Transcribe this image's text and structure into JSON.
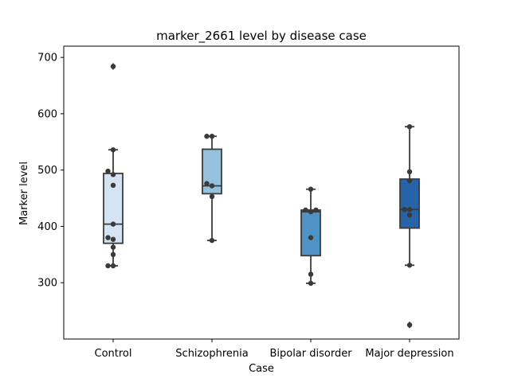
{
  "chart_data": {
    "type": "box",
    "title": "marker_2661 level by disease case",
    "xlabel": "Case",
    "ylabel": "Marker level",
    "ylim": [
      200,
      720
    ],
    "yticks": [
      300,
      400,
      500,
      600,
      700
    ],
    "grid": false,
    "categories": [
      "Control",
      "Schizophrenia",
      "Bipolar disorder",
      "Major depression"
    ],
    "colors": [
      "#d5e4f4",
      "#95c1dd",
      "#4f93c6",
      "#2764a7"
    ],
    "boxes": [
      {
        "category": "Control",
        "whisker_low": 330,
        "q1": 370,
        "median": 404,
        "q3": 494,
        "whisker_high": 536,
        "outliers": [
          684
        ]
      },
      {
        "category": "Schizophrenia",
        "whisker_low": 375,
        "q1": 458,
        "median": 472,
        "q3": 537,
        "whisker_high": 560,
        "outliers": []
      },
      {
        "category": "Bipolar disorder",
        "whisker_low": 299,
        "q1": 348,
        "median": 426,
        "q3": 429,
        "whisker_high": 466,
        "outliers": []
      },
      {
        "category": "Major depression",
        "whisker_low": 331,
        "q1": 397,
        "median": 430,
        "q3": 484,
        "whisker_high": 577,
        "outliers": [
          225
        ]
      }
    ],
    "points": [
      {
        "category": "Control",
        "values": [
          330,
          330,
          350,
          363,
          377,
          380,
          404,
          473,
          492,
          498,
          536,
          684
        ]
      },
      {
        "category": "Schizophrenia",
        "values": [
          375,
          453,
          472,
          476,
          560,
          560
        ]
      },
      {
        "category": "Bipolar disorder",
        "values": [
          299,
          315,
          380,
          426,
          429,
          429,
          466
        ]
      },
      {
        "category": "Major depression",
        "values": [
          225,
          331,
          420,
          430,
          430,
          481,
          497,
          577
        ]
      }
    ]
  }
}
